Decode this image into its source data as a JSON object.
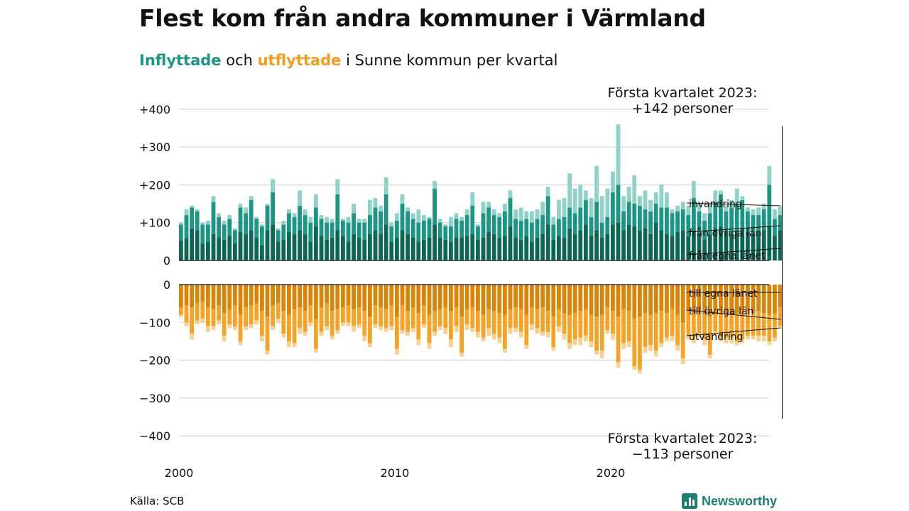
{
  "title": "Flest kom från andra kommuner i Värmland",
  "subtitle": {
    "part1": "Inflyttade",
    "part2": " och ",
    "part3": "utflyttade",
    "part4": " i Sunne kommun per kvartal"
  },
  "source": "Källa: SCB",
  "brand": "Newsworthy",
  "colors": {
    "in_egna": "#0e6655",
    "in_ovriga": "#1d9584",
    "in_invandring": "#8fd3c8",
    "out_egna": "#d9850a",
    "out_ovriga": "#f4a326",
    "out_utvandring": "#f8d192",
    "grid": "#dddddd"
  },
  "chart_data": {
    "type": "bar",
    "stacked": true,
    "y_ticks_top": [
      "+400",
      "+300",
      "+200",
      "+100",
      "0"
    ],
    "y_ticks_bottom": [
      "0",
      "−100",
      "−200",
      "−300",
      "−400"
    ],
    "ylim_top": [
      0,
      400
    ],
    "ylim_bottom": [
      -400,
      0
    ],
    "x_ticks": [
      "2000",
      "2010",
      "2020"
    ],
    "series_labels": {
      "in_invandring": "invandring",
      "in_ovriga": "från övriga län",
      "in_egna": "från egna länet",
      "out_egna": "till egna länet",
      "out_ovriga": "till övriga län",
      "out_utvandring": "utvandring"
    },
    "annotation_top": [
      "Första kvartalet 2023:",
      "+142 personer"
    ],
    "annotation_bottom": [
      "Första kvartalet 2023:",
      "−113 personer"
    ],
    "quarters_start": "2000 Q1",
    "inflow": [
      [
        53,
        42,
        5
      ],
      [
        58,
        62,
        15
      ],
      [
        85,
        55,
        5
      ],
      [
        80,
        50,
        5
      ],
      [
        45,
        50,
        5
      ],
      [
        50,
        45,
        10
      ],
      [
        70,
        85,
        15
      ],
      [
        60,
        55,
        10
      ],
      [
        55,
        40,
        10
      ],
      [
        65,
        45,
        10
      ],
      [
        45,
        35,
        5
      ],
      [
        75,
        65,
        10
      ],
      [
        70,
        55,
        15
      ],
      [
        80,
        80,
        10
      ],
      [
        60,
        50,
        5
      ],
      [
        40,
        50,
        5
      ],
      [
        80,
        65,
        5
      ],
      [
        95,
        85,
        35
      ],
      [
        50,
        30,
        5
      ],
      [
        55,
        40,
        10
      ],
      [
        75,
        50,
        10
      ],
      [
        70,
        45,
        10
      ],
      [
        80,
        65,
        40
      ],
      [
        70,
        50,
        15
      ],
      [
        50,
        50,
        15
      ],
      [
        90,
        50,
        35
      ],
      [
        65,
        45,
        10
      ],
      [
        55,
        45,
        15
      ],
      [
        60,
        40,
        10
      ],
      [
        80,
        95,
        40
      ],
      [
        65,
        40,
        5
      ],
      [
        50,
        50,
        15
      ],
      [
        70,
        55,
        25
      ],
      [
        60,
        40,
        10
      ],
      [
        55,
        45,
        10
      ],
      [
        70,
        50,
        40
      ],
      [
        80,
        60,
        25
      ],
      [
        70,
        60,
        15
      ],
      [
        95,
        80,
        45
      ],
      [
        50,
        40,
        10
      ],
      [
        60,
        45,
        20
      ],
      [
        80,
        70,
        25
      ],
      [
        70,
        60,
        10
      ],
      [
        60,
        50,
        15
      ],
      [
        50,
        50,
        35
      ],
      [
        55,
        50,
        15
      ],
      [
        60,
        50,
        5
      ],
      [
        95,
        95,
        20
      ],
      [
        60,
        40,
        10
      ],
      [
        55,
        35,
        5
      ],
      [
        50,
        40,
        25
      ],
      [
        60,
        50,
        15
      ],
      [
        60,
        45,
        10
      ],
      [
        65,
        55,
        15
      ],
      [
        70,
        75,
        35
      ],
      [
        55,
        35,
        5
      ],
      [
        60,
        65,
        30
      ],
      [
        75,
        65,
        15
      ],
      [
        70,
        50,
        15
      ],
      [
        60,
        55,
        10
      ],
      [
        65,
        65,
        20
      ],
      [
        90,
        75,
        20
      ],
      [
        60,
        50,
        25
      ],
      [
        55,
        50,
        35
      ],
      [
        65,
        45,
        20
      ],
      [
        50,
        50,
        30
      ],
      [
        60,
        50,
        25
      ],
      [
        70,
        50,
        35
      ],
      [
        95,
        75,
        25
      ],
      [
        55,
        40,
        20
      ],
      [
        65,
        45,
        50
      ],
      [
        60,
        55,
        50
      ],
      [
        85,
        55,
        90
      ],
      [
        70,
        55,
        65
      ],
      [
        80,
        60,
        60
      ],
      [
        95,
        65,
        25
      ],
      [
        65,
        50,
        50
      ],
      [
        80,
        75,
        95
      ],
      [
        60,
        40,
        70
      ],
      [
        70,
        45,
        75
      ],
      [
        95,
        85,
        55
      ],
      [
        100,
        100,
        160
      ],
      [
        80,
        50,
        40
      ],
      [
        95,
        60,
        40
      ],
      [
        90,
        60,
        75
      ],
      [
        80,
        65,
        25
      ],
      [
        85,
        50,
        50
      ],
      [
        70,
        60,
        30
      ],
      [
        100,
        50,
        30
      ],
      [
        80,
        60,
        60
      ],
      [
        70,
        70,
        40
      ],
      [
        65,
        60,
        10
      ],
      [
        75,
        55,
        15
      ],
      [
        80,
        55,
        20
      ],
      [
        65,
        55,
        25
      ],
      [
        80,
        85,
        45
      ],
      [
        70,
        60,
        20
      ],
      [
        55,
        50,
        20
      ],
      [
        70,
        55,
        25
      ],
      [
        80,
        75,
        30
      ],
      [
        90,
        85,
        10
      ],
      [
        75,
        55,
        15
      ],
      [
        70,
        70,
        20
      ],
      [
        80,
        70,
        40
      ],
      [
        85,
        75,
        10
      ],
      [
        75,
        55,
        10
      ],
      [
        70,
        50,
        15
      ],
      [
        75,
        45,
        20
      ],
      [
        80,
        55,
        15
      ],
      [
        90,
        110,
        50
      ],
      [
        65,
        45,
        25
      ],
      [
        80,
        40,
        22
      ]
    ],
    "outflow": [
      [
        60,
        20,
        5
      ],
      [
        55,
        45,
        10
      ],
      [
        60,
        70,
        15
      ],
      [
        50,
        45,
        10
      ],
      [
        45,
        45,
        10
      ],
      [
        60,
        50,
        15
      ],
      [
        65,
        45,
        10
      ],
      [
        55,
        40,
        10
      ],
      [
        75,
        60,
        15
      ],
      [
        65,
        40,
        10
      ],
      [
        55,
        55,
        10
      ],
      [
        80,
        70,
        10
      ],
      [
        60,
        50,
        10
      ],
      [
        55,
        50,
        10
      ],
      [
        50,
        45,
        10
      ],
      [
        70,
        65,
        15
      ],
      [
        85,
        90,
        10
      ],
      [
        55,
        55,
        10
      ],
      [
        50,
        40,
        10
      ],
      [
        70,
        60,
        10
      ],
      [
        80,
        70,
        15
      ],
      [
        65,
        90,
        10
      ],
      [
        60,
        55,
        15
      ],
      [
        70,
        55,
        10
      ],
      [
        55,
        45,
        10
      ],
      [
        90,
        80,
        10
      ],
      [
        60,
        65,
        10
      ],
      [
        50,
        60,
        10
      ],
      [
        70,
        65,
        10
      ],
      [
        65,
        55,
        10
      ],
      [
        60,
        40,
        10
      ],
      [
        55,
        45,
        10
      ],
      [
        65,
        45,
        15
      ],
      [
        60,
        45,
        10
      ],
      [
        70,
        65,
        15
      ],
      [
        85,
        70,
        10
      ],
      [
        55,
        50,
        10
      ],
      [
        60,
        50,
        10
      ],
      [
        65,
        50,
        10
      ],
      [
        55,
        55,
        10
      ],
      [
        85,
        85,
        15
      ],
      [
        55,
        65,
        10
      ],
      [
        70,
        55,
        10
      ],
      [
        60,
        55,
        10
      ],
      [
        75,
        70,
        15
      ],
      [
        55,
        50,
        10
      ],
      [
        80,
        75,
        15
      ],
      [
        70,
        55,
        10
      ],
      [
        65,
        45,
        10
      ],
      [
        60,
        55,
        15
      ],
      [
        70,
        75,
        20
      ],
      [
        60,
        50,
        15
      ],
      [
        85,
        95,
        10
      ],
      [
        65,
        40,
        15
      ],
      [
        60,
        55,
        10
      ],
      [
        70,
        55,
        15
      ],
      [
        80,
        60,
        10
      ],
      [
        65,
        50,
        20
      ],
      [
        70,
        60,
        15
      ],
      [
        75,
        65,
        15
      ],
      [
        80,
        90,
        10
      ],
      [
        65,
        50,
        15
      ],
      [
        60,
        55,
        10
      ],
      [
        65,
        60,
        15
      ],
      [
        80,
        80,
        10
      ],
      [
        60,
        45,
        15
      ],
      [
        65,
        50,
        15
      ],
      [
        60,
        65,
        10
      ],
      [
        70,
        55,
        15
      ],
      [
        85,
        80,
        10
      ],
      [
        65,
        45,
        15
      ],
      [
        75,
        55,
        15
      ],
      [
        80,
        75,
        15
      ],
      [
        75,
        70,
        15
      ],
      [
        70,
        70,
        20
      ],
      [
        65,
        70,
        15
      ],
      [
        80,
        70,
        15
      ],
      [
        85,
        90,
        10
      ],
      [
        80,
        95,
        20
      ],
      [
        60,
        60,
        10
      ],
      [
        70,
        60,
        15
      ],
      [
        85,
        120,
        15
      ],
      [
        65,
        90,
        15
      ],
      [
        70,
        80,
        15
      ],
      [
        90,
        125,
        10
      ],
      [
        85,
        140,
        10
      ],
      [
        75,
        90,
        15
      ],
      [
        80,
        80,
        15
      ],
      [
        75,
        100,
        15
      ],
      [
        70,
        85,
        10
      ],
      [
        75,
        65,
        10
      ],
      [
        65,
        70,
        15
      ],
      [
        80,
        80,
        15
      ],
      [
        100,
        95,
        15
      ],
      [
        70,
        65,
        10
      ],
      [
        75,
        65,
        15
      ],
      [
        70,
        60,
        10
      ],
      [
        80,
        65,
        15
      ],
      [
        85,
        100,
        10
      ],
      [
        65,
        60,
        10
      ],
      [
        70,
        70,
        10
      ],
      [
        75,
        65,
        15
      ],
      [
        80,
        60,
        15
      ],
      [
        75,
        75,
        10
      ],
      [
        70,
        75,
        10
      ],
      [
        70,
        65,
        10
      ],
      [
        75,
        60,
        10
      ],
      [
        70,
        65,
        15
      ],
      [
        75,
        60,
        15
      ],
      [
        80,
        70,
        10
      ],
      [
        75,
        65,
        10
      ],
      [
        60,
        50,
        3
      ]
    ]
  }
}
